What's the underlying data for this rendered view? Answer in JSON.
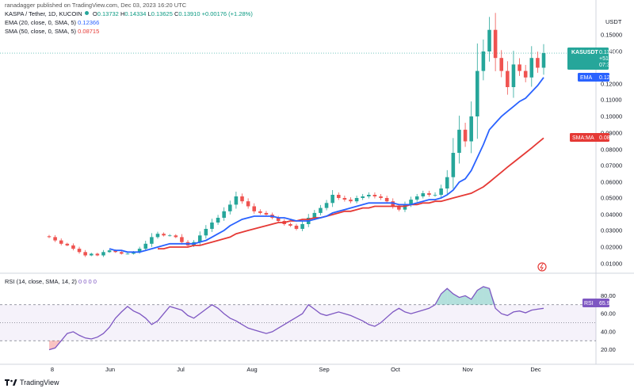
{
  "header": {
    "publisher": "ranadagger published on TradingView.com, Dec 03, 2023 16:20 UTC",
    "symbol": "KASPA / Tether, 1D, KUCOIN",
    "ohlc": {
      "o_label": "O",
      "o": "0.13732",
      "h_label": "H",
      "h": "0.14334",
      "l_label": "L",
      "l": "0.13625",
      "c_label": "C",
      "c": "0.13910",
      "change": "+0.00176 (+1.28%)"
    },
    "ema_label": "EMA (20, close, 0, SMA, 5)",
    "ema_value": "0.12366",
    "sma_label": "SMA (50, close, 0, SMA, 5)",
    "sma_value": "0.08715",
    "rsi_label": "RSI (14, close, SMA, 14, 2)",
    "rsi_zeros": "0 0 0 0"
  },
  "price_axis": {
    "currency": "USDT",
    "ticks": [
      "0.15000",
      "0.14000",
      "0.12000",
      "0.11000",
      "0.10000",
      "0.09000",
      "0.08000",
      "0.07000",
      "0.06000",
      "0.05000",
      "0.04000",
      "0.03000",
      "0.02000",
      "0.01000"
    ]
  },
  "price_tags": {
    "symbol": {
      "title": "KASUSDT",
      "price": "0.13910",
      "pct": "+510.09%",
      "time": "07:39:32",
      "color": "#26a69a"
    },
    "ema": {
      "title": "EMA",
      "value": "0.12366",
      "color": "#2962ff"
    },
    "sma": {
      "title": "SMA:MA",
      "value": "0.08715",
      "color": "#e53935"
    }
  },
  "rsi_axis": {
    "ticks": [
      "80.00",
      "60.00",
      "40.00",
      "20.00"
    ],
    "tag_title": "RSI",
    "tag_value": "65.97",
    "tag_color": "#7e57c2"
  },
  "time_axis": {
    "labels": [
      "8",
      "Jun",
      "Jul",
      "Aug",
      "Sep",
      "Oct",
      "Nov",
      "Dec"
    ]
  },
  "footer": {
    "brand": "TradingView"
  },
  "chart_data": [
    {
      "type": "line",
      "title": "KASPA / Tether, 1D, KUCOIN",
      "x_labels": [
        "8",
        "Jun",
        "Jul",
        "Aug",
        "Sep",
        "Oct",
        "Nov",
        "Dec"
      ],
      "ylabel": "USDT",
      "ylim": [
        0.004,
        0.156
      ],
      "y_ticks": [
        0.15,
        0.14,
        0.12,
        0.11,
        0.1,
        0.09,
        0.08,
        0.07,
        0.06,
        0.05,
        0.04,
        0.03,
        0.02,
        0.01
      ],
      "series": [
        {
          "name": "KASPA / Tether, 1D, KUCOIN",
          "style": "candles",
          "color_up": "#26a69a",
          "color_down": "#ef5350",
          "values": [
            0.026,
            0.024,
            0.022,
            0.021,
            0.019,
            0.017,
            0.015,
            0.016,
            0.015,
            0.017,
            0.018,
            0.017,
            0.016,
            0.016,
            0.017,
            0.019,
            0.022,
            0.026,
            0.028,
            0.027,
            0.027,
            0.026,
            0.023,
            0.021,
            0.023,
            0.027,
            0.031,
            0.035,
            0.038,
            0.042,
            0.046,
            0.051,
            0.048,
            0.045,
            0.042,
            0.041,
            0.04,
            0.038,
            0.036,
            0.034,
            0.033,
            0.031,
            0.034,
            0.038,
            0.041,
            0.044,
            0.047,
            0.052,
            0.05,
            0.049,
            0.048,
            0.05,
            0.051,
            0.052,
            0.051,
            0.05,
            0.048,
            0.045,
            0.043,
            0.046,
            0.049,
            0.051,
            0.053,
            0.052,
            0.052,
            0.056,
            0.063,
            0.078,
            0.092,
            0.085,
            0.1,
            0.128,
            0.14,
            0.153,
            0.136,
            0.128,
            0.118,
            0.132,
            0.128,
            0.124,
            0.136,
            0.13,
            0.139
          ]
        },
        {
          "name": "EMA",
          "color": "#2962ff",
          "values": [
            null,
            null,
            null,
            null,
            null,
            null,
            null,
            null,
            null,
            null,
            0.019,
            0.018,
            0.018,
            0.017,
            0.017,
            0.017,
            0.018,
            0.019,
            0.02,
            0.021,
            0.022,
            0.022,
            0.022,
            0.022,
            0.022,
            0.023,
            0.024,
            0.026,
            0.028,
            0.03,
            0.033,
            0.035,
            0.037,
            0.038,
            0.039,
            0.039,
            0.039,
            0.039,
            0.038,
            0.038,
            0.037,
            0.036,
            0.036,
            0.036,
            0.037,
            0.038,
            0.039,
            0.041,
            0.042,
            0.043,
            0.044,
            0.045,
            0.046,
            0.047,
            0.047,
            0.047,
            0.047,
            0.047,
            0.046,
            0.046,
            0.046,
            0.047,
            0.048,
            0.049,
            0.049,
            0.05,
            0.052,
            0.055,
            0.06,
            0.062,
            0.067,
            0.075,
            0.083,
            0.092,
            0.096,
            0.1,
            0.103,
            0.106,
            0.109,
            0.111,
            0.115,
            0.119,
            0.124
          ]
        },
        {
          "name": "SMA:MA",
          "color": "#e53935",
          "values": [
            null,
            null,
            null,
            null,
            null,
            null,
            null,
            null,
            null,
            null,
            null,
            null,
            null,
            null,
            null,
            null,
            null,
            null,
            0.019,
            0.019,
            0.02,
            0.02,
            0.02,
            0.02,
            0.021,
            0.021,
            0.022,
            0.023,
            0.024,
            0.025,
            0.026,
            0.028,
            0.029,
            0.03,
            0.031,
            0.032,
            0.033,
            0.034,
            0.035,
            0.035,
            0.036,
            0.036,
            0.037,
            0.037,
            0.038,
            0.038,
            0.039,
            0.04,
            0.041,
            0.042,
            0.042,
            0.043,
            0.044,
            0.044,
            0.045,
            0.045,
            0.045,
            0.045,
            0.045,
            0.045,
            0.046,
            0.046,
            0.047,
            0.047,
            0.048,
            0.048,
            0.049,
            0.05,
            0.051,
            0.052,
            0.053,
            0.055,
            0.057,
            0.06,
            0.063,
            0.066,
            0.069,
            0.072,
            0.075,
            0.078,
            0.081,
            0.084,
            0.087
          ]
        }
      ]
    },
    {
      "type": "line",
      "title": "RSI (14, close, SMA, 14, 2)",
      "ylim": [
        10,
        95
      ],
      "y_ticks": [
        80,
        60,
        40,
        20
      ],
      "bands": [
        70,
        50,
        30
      ],
      "series": [
        {
          "name": "RSI",
          "color": "#7e57c2",
          "values": [
            20,
            22,
            30,
            38,
            40,
            36,
            33,
            32,
            34,
            38,
            45,
            55,
            62,
            68,
            63,
            60,
            55,
            48,
            52,
            60,
            68,
            66,
            64,
            58,
            55,
            60,
            65,
            70,
            66,
            60,
            55,
            52,
            48,
            44,
            42,
            40,
            38,
            40,
            44,
            48,
            52,
            56,
            60,
            70,
            65,
            60,
            58,
            60,
            62,
            60,
            58,
            55,
            52,
            48,
            46,
            50,
            56,
            62,
            66,
            62,
            60,
            62,
            64,
            66,
            70,
            82,
            88,
            82,
            78,
            80,
            76,
            86,
            90,
            88,
            66,
            60,
            58,
            62,
            63,
            61,
            64,
            65,
            66
          ]
        },
        {
          "name": "RSI MA",
          "color": "#ef9a9a",
          "values": [
            null,
            null,
            null,
            null,
            null,
            null,
            null,
            null,
            null,
            null,
            null,
            null,
            null,
            null,
            null,
            null,
            null,
            null,
            null,
            null,
            null,
            null,
            null,
            null,
            null,
            null,
            null,
            null,
            null,
            null,
            null,
            null,
            null,
            null,
            null,
            null,
            null,
            null,
            null,
            null,
            null,
            null,
            null,
            null,
            null,
            null,
            null,
            null,
            null,
            null,
            null,
            null,
            null,
            null,
            null,
            null,
            null,
            null,
            null,
            null,
            null,
            null,
            null,
            null,
            null,
            null,
            null,
            null,
            null,
            null,
            null,
            null,
            null,
            null,
            null,
            null,
            null,
            null,
            null,
            null,
            null,
            null,
            null
          ]
        }
      ]
    }
  ]
}
